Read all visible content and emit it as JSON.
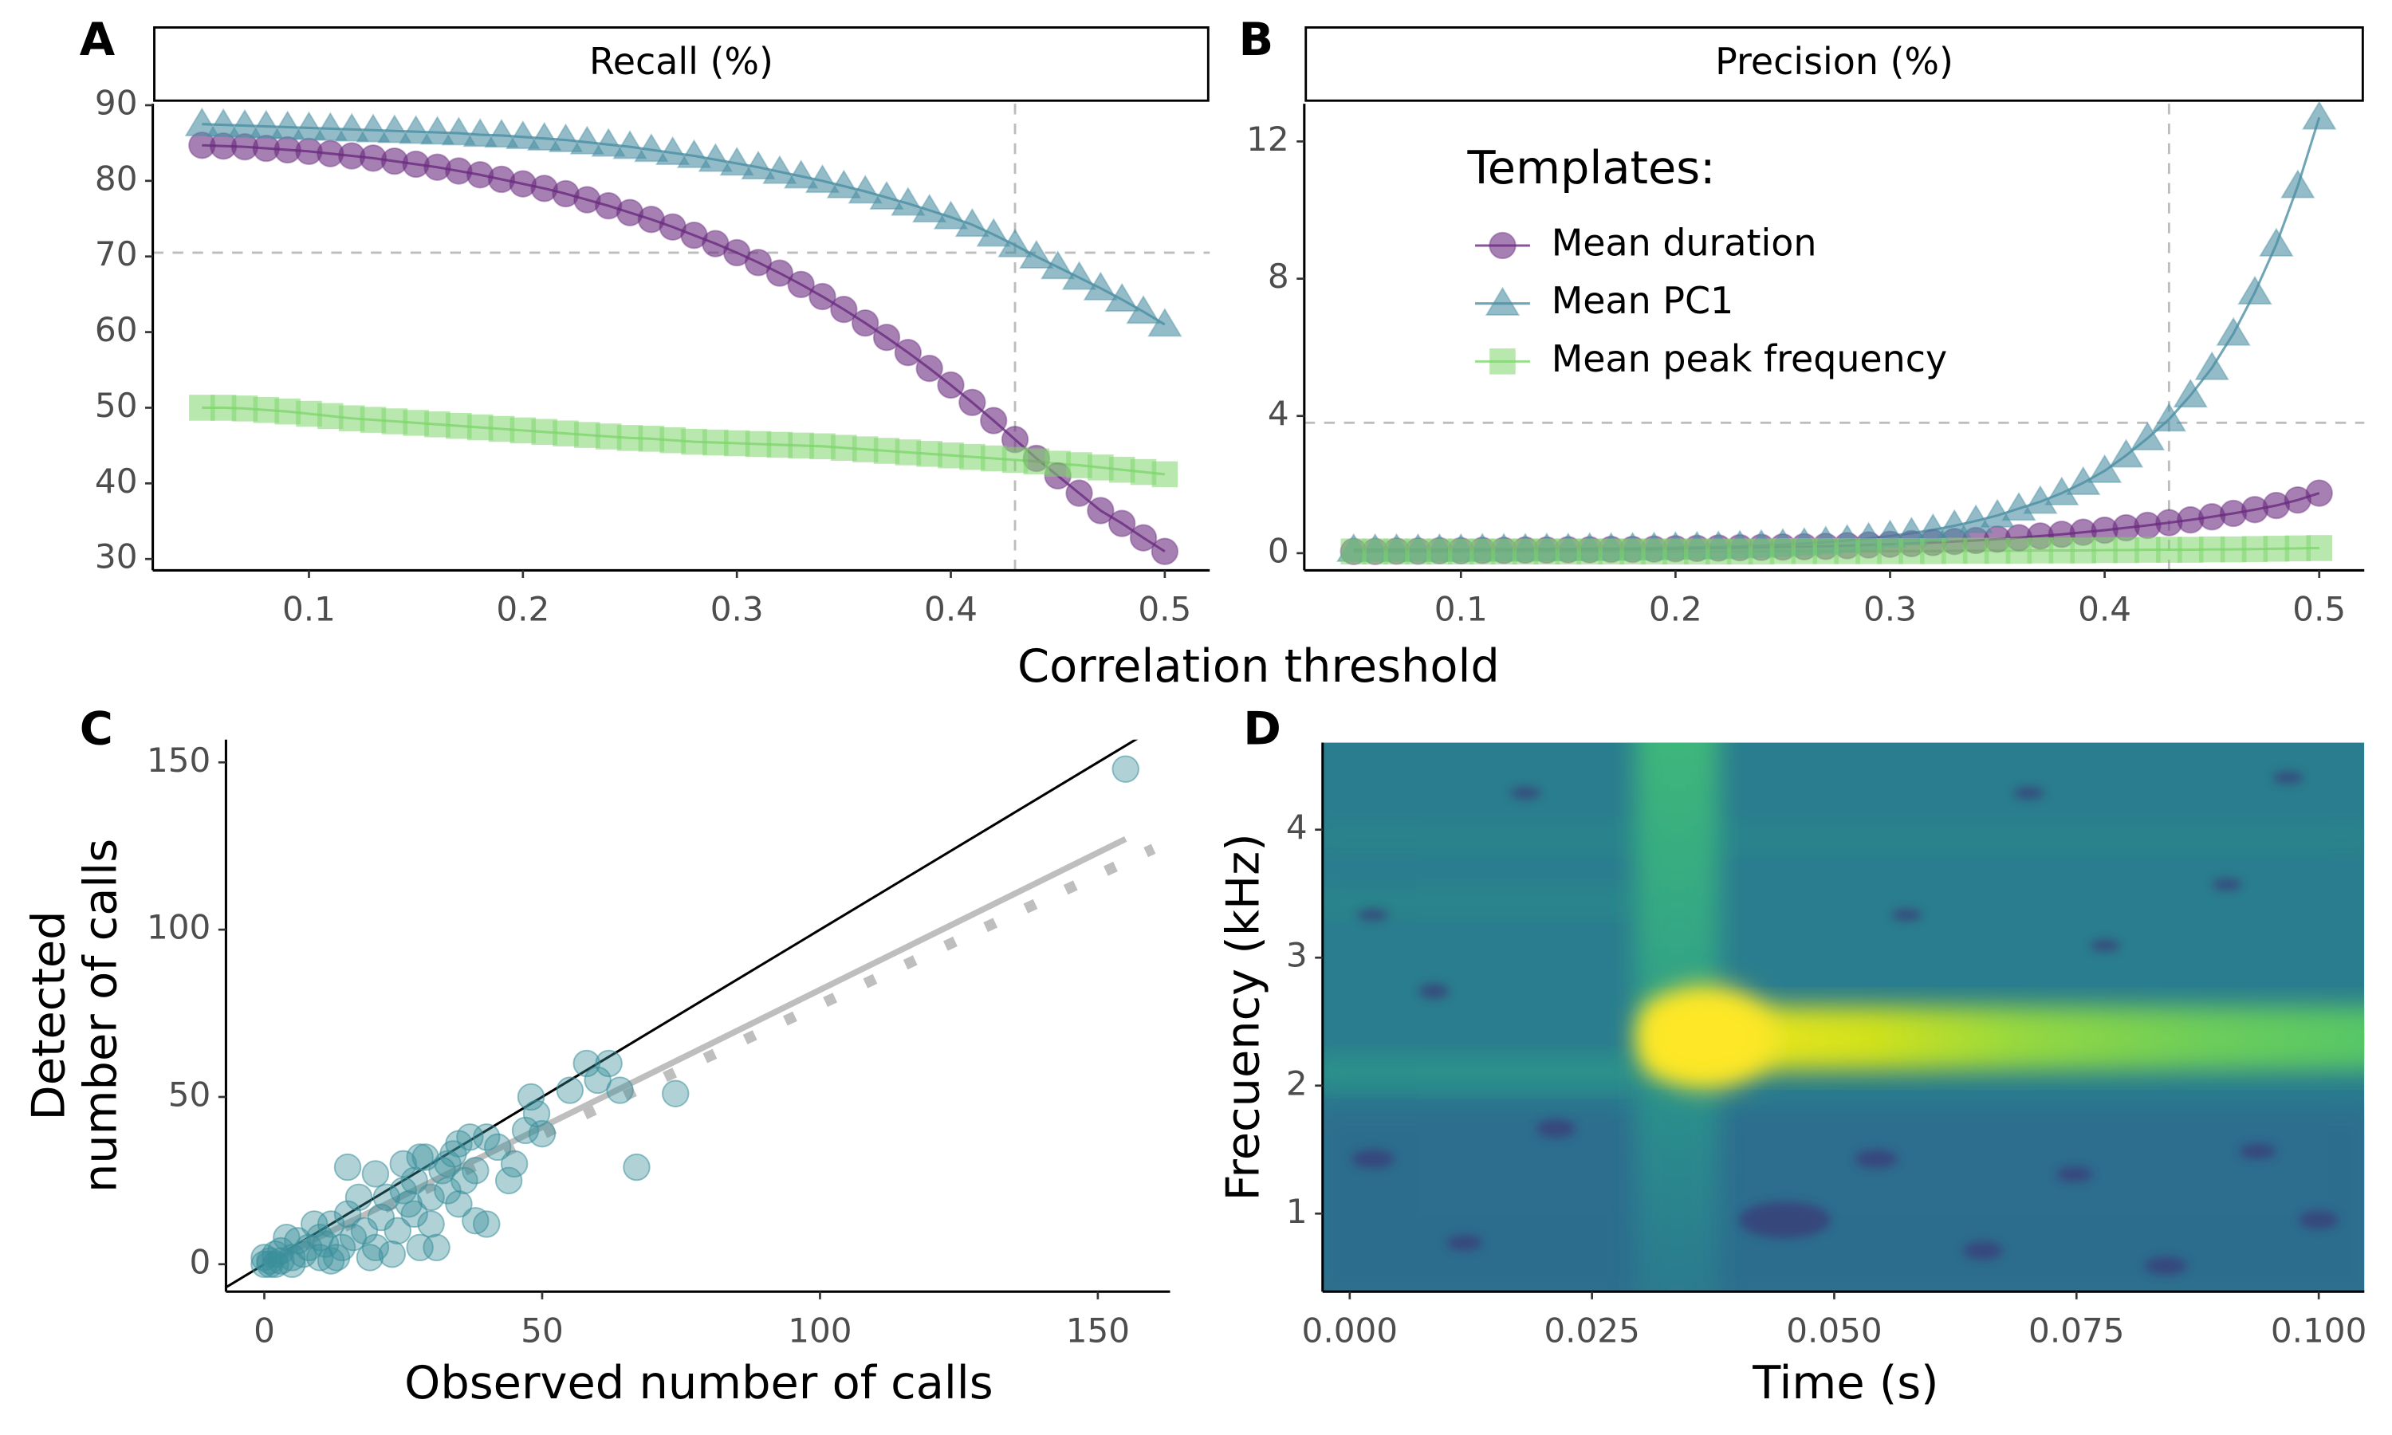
{
  "shared_xlabel": "Correlation threshold",
  "chart_data": [
    {
      "type": "line",
      "panel": "A",
      "title": "Recall (%)",
      "x": [
        0.05,
        0.06,
        0.07,
        0.08,
        0.09,
        0.1,
        0.11,
        0.12,
        0.13,
        0.14,
        0.15,
        0.16,
        0.17,
        0.18,
        0.19,
        0.2,
        0.21,
        0.22,
        0.23,
        0.24,
        0.25,
        0.26,
        0.27,
        0.28,
        0.29,
        0.3,
        0.31,
        0.32,
        0.33,
        0.34,
        0.35,
        0.36,
        0.37,
        0.38,
        0.39,
        0.4,
        0.41,
        0.42,
        0.43,
        0.44,
        0.45,
        0.46,
        0.47,
        0.48,
        0.49,
        0.5
      ],
      "series": [
        {
          "color": "#6a2c7f",
          "marker": "circle",
          "values": [
            84.7,
            84.6,
            84.5,
            84.3,
            84.1,
            83.9,
            83.6,
            83.3,
            83.0,
            82.6,
            82.2,
            81.8,
            81.3,
            80.8,
            80.2,
            79.6,
            79.0,
            78.3,
            77.5,
            76.7,
            75.8,
            74.9,
            73.9,
            72.8,
            71.7,
            70.5,
            69.2,
            67.8,
            66.3,
            64.7,
            63.0,
            61.2,
            59.3,
            57.3,
            55.2,
            53.0,
            50.7,
            48.3,
            45.8,
            43.3,
            41.0,
            38.7,
            36.4,
            34.7,
            32.8,
            31.0
          ]
        },
        {
          "color": "#4b8fa3",
          "marker": "triangle",
          "values": [
            87.5,
            87.4,
            87.3,
            87.2,
            87.1,
            87.0,
            86.9,
            86.8,
            86.7,
            86.6,
            86.5,
            86.4,
            86.3,
            86.1,
            86.0,
            85.8,
            85.6,
            85.4,
            85.1,
            84.8,
            84.5,
            84.1,
            83.7,
            83.3,
            82.8,
            82.3,
            81.8,
            81.2,
            80.6,
            80.0,
            79.3,
            78.6,
            77.8,
            77.0,
            76.1,
            75.2,
            74.2,
            72.9,
            71.5,
            70.0,
            68.6,
            67.2,
            65.8,
            64.3,
            62.7,
            61.0
          ]
        },
        {
          "color": "#7fd66e",
          "marker": "square",
          "values": [
            50.0,
            50.0,
            49.9,
            49.7,
            49.5,
            49.2,
            48.9,
            48.6,
            48.4,
            48.2,
            48.0,
            47.8,
            47.6,
            47.4,
            47.2,
            47.0,
            46.8,
            46.6,
            46.4,
            46.2,
            46.0,
            45.9,
            45.7,
            45.5,
            45.4,
            45.3,
            45.2,
            45.1,
            45.0,
            44.9,
            44.7,
            44.5,
            44.3,
            44.1,
            43.9,
            43.7,
            43.5,
            43.3,
            43.1,
            42.9,
            42.6,
            42.4,
            42.1,
            41.8,
            41.5,
            41.2
          ]
        }
      ],
      "vline": 0.43,
      "hline": 70.5,
      "xlim": [
        0.027,
        0.521
      ],
      "xticks": [
        0.1,
        0.2,
        0.3,
        0.4,
        0.5
      ],
      "ylim": [
        28.5,
        90.2
      ],
      "yticks": [
        30,
        40,
        50,
        60,
        70,
        80,
        90
      ]
    },
    {
      "type": "line",
      "panel": "B",
      "title": "Precision (%)",
      "x": [
        0.05,
        0.06,
        0.07,
        0.08,
        0.09,
        0.1,
        0.11,
        0.12,
        0.13,
        0.14,
        0.15,
        0.16,
        0.17,
        0.18,
        0.19,
        0.2,
        0.21,
        0.22,
        0.23,
        0.24,
        0.25,
        0.26,
        0.27,
        0.28,
        0.29,
        0.3,
        0.31,
        0.32,
        0.33,
        0.34,
        0.35,
        0.36,
        0.37,
        0.38,
        0.39,
        0.4,
        0.41,
        0.42,
        0.43,
        0.44,
        0.45,
        0.46,
        0.47,
        0.48,
        0.49,
        0.5
      ],
      "legend_title": "Templates:",
      "legend": "top-left",
      "series": [
        {
          "name": "Mean duration",
          "color": "#6a2c7f",
          "marker": "circle",
          "values": [
            0.05,
            0.05,
            0.06,
            0.06,
            0.07,
            0.07,
            0.08,
            0.08,
            0.09,
            0.09,
            0.1,
            0.1,
            0.11,
            0.11,
            0.12,
            0.13,
            0.14,
            0.15,
            0.16,
            0.17,
            0.18,
            0.19,
            0.2,
            0.22,
            0.24,
            0.26,
            0.28,
            0.31,
            0.34,
            0.37,
            0.41,
            0.45,
            0.5,
            0.55,
            0.61,
            0.67,
            0.74,
            0.81,
            0.89,
            0.97,
            1.06,
            1.16,
            1.27,
            1.39,
            1.55,
            1.75
          ]
        },
        {
          "name": "Mean PC1",
          "color": "#4b8fa3",
          "marker": "triangle",
          "values": [
            0.1,
            0.1,
            0.1,
            0.1,
            0.1,
            0.1,
            0.11,
            0.11,
            0.11,
            0.12,
            0.12,
            0.13,
            0.13,
            0.14,
            0.15,
            0.16,
            0.17,
            0.18,
            0.2,
            0.22,
            0.25,
            0.28,
            0.32,
            0.37,
            0.43,
            0.5,
            0.58,
            0.68,
            0.8,
            0.94,
            1.1,
            1.3,
            1.5,
            1.75,
            2.05,
            2.4,
            2.85,
            3.35,
            3.9,
            4.6,
            5.4,
            6.4,
            7.6,
            9.0,
            10.7,
            12.7
          ]
        },
        {
          "name": "Mean peak frequency",
          "color": "#7fd66e",
          "marker": "square",
          "values": [
            0.05,
            0.05,
            0.05,
            0.05,
            0.05,
            0.05,
            0.05,
            0.05,
            0.05,
            0.05,
            0.05,
            0.05,
            0.05,
            0.05,
            0.05,
            0.05,
            0.05,
            0.05,
            0.05,
            0.05,
            0.06,
            0.06,
            0.06,
            0.06,
            0.06,
            0.06,
            0.06,
            0.06,
            0.07,
            0.07,
            0.07,
            0.07,
            0.08,
            0.08,
            0.08,
            0.09,
            0.09,
            0.1,
            0.1,
            0.1,
            0.11,
            0.11,
            0.12,
            0.13,
            0.14,
            0.15
          ]
        }
      ],
      "vline": 0.43,
      "hline": 3.8,
      "xlim": [
        0.027,
        0.521
      ],
      "xticks": [
        0.1,
        0.2,
        0.3,
        0.4,
        0.5
      ],
      "ylim": [
        -0.5,
        13.1
      ],
      "yticks": [
        0,
        4,
        8,
        12
      ]
    },
    {
      "type": "scatter",
      "panel": "C",
      "xlabel": "Observed number of calls",
      "ylabel": [
        "Detected",
        "number of calls"
      ],
      "color": "#3a8f9b",
      "x": [
        155,
        74,
        67,
        62,
        58,
        55,
        48,
        49,
        47,
        50,
        44,
        40,
        38,
        37,
        35,
        33,
        32,
        30,
        28,
        27,
        25,
        25,
        24,
        22,
        20,
        20,
        18,
        17,
        15,
        15,
        14,
        12,
        12,
        10,
        10,
        9,
        8,
        7,
        6,
        5,
        5,
        4,
        3,
        3,
        2,
        2,
        1,
        1,
        0,
        0,
        31,
        35,
        38,
        42,
        45,
        28,
        26,
        23,
        30,
        33,
        36,
        60,
        64,
        19,
        16,
        13,
        21,
        27,
        29,
        34,
        40,
        11
      ],
      "values": [
        148,
        51,
        29,
        60,
        60,
        52,
        50,
        45,
        40,
        39,
        25,
        12,
        13,
        38,
        36,
        30,
        28,
        20,
        32,
        15,
        30,
        22,
        10,
        20,
        27,
        5,
        10,
        20,
        29,
        15,
        5,
        12,
        1,
        8,
        2,
        12,
        5,
        3,
        7,
        2,
        0,
        8,
        1,
        4,
        0,
        3,
        1,
        0,
        0,
        2,
        5,
        18,
        28,
        35,
        30,
        5,
        18,
        3,
        12,
        22,
        25,
        55,
        52,
        2,
        8,
        2,
        14,
        25,
        32,
        33,
        38,
        6
      ],
      "lines": [
        {
          "slope": 1,
          "intercept": 0,
          "color": "#000000",
          "style": "solid",
          "x_range": [
            -7,
            163
          ]
        },
        {
          "slope": 0.82,
          "intercept": 0,
          "color": "#bebebe",
          "style": "solid",
          "x_range": [
            0,
            155
          ]
        },
        {
          "slope": 0.776,
          "intercept": 0,
          "color": "#bebebe",
          "style": "dotted",
          "x_range": [
            0,
            160
          ]
        }
      ],
      "xlim": [
        -6.9,
        163
      ],
      "xticks": [
        0,
        50,
        100,
        150
      ],
      "ylim": [
        -8.2,
        156.8
      ],
      "yticks": [
        0,
        50,
        100,
        150
      ]
    },
    {
      "type": "spectrogram",
      "panel": "D",
      "xlabel": "Time (s)",
      "ylabel": "Frecuency (kHz)",
      "xlim": [
        -0.0028,
        0.1047
      ],
      "xticks": [
        {
          "value": 0,
          "label": "0.000"
        },
        {
          "value": 0.025,
          "label": "0.025"
        },
        {
          "value": 0.05,
          "label": "0.050"
        },
        {
          "value": 0.075,
          "label": "0.075"
        },
        {
          "value": 0.1,
          "label": "0.100"
        }
      ],
      "ylim": [
        0.39,
        4.68
      ],
      "yticks": [
        1,
        2,
        3,
        4
      ]
    }
  ]
}
